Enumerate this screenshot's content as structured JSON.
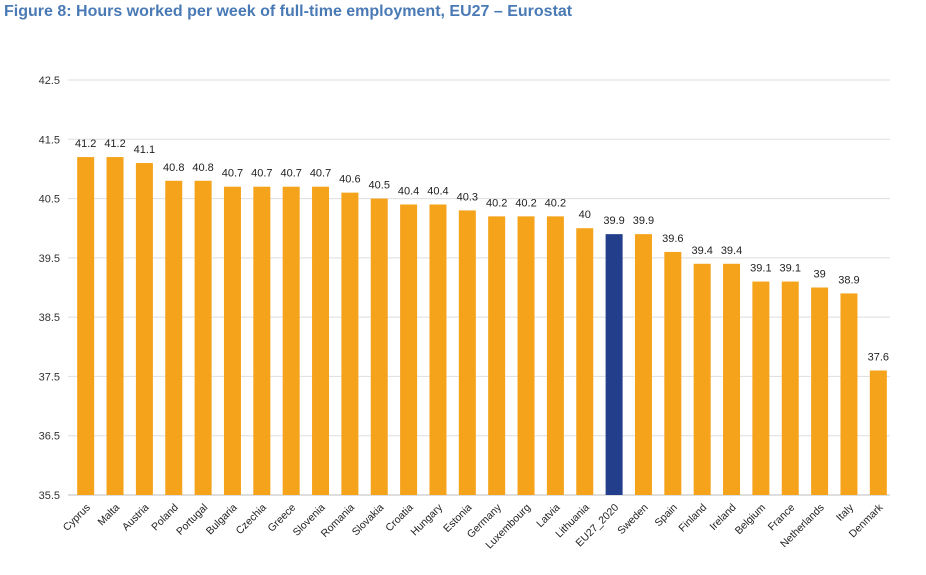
{
  "page": {
    "title": "Figure 8: Hours worked per week of full-time employment, EU27 – Eurostat"
  },
  "chart_data": {
    "type": "bar",
    "title": "",
    "xlabel": "",
    "ylabel": "",
    "ylim": [
      35.5,
      42.5
    ],
    "yticks": [
      "35.5",
      "36.5",
      "37.5",
      "38.5",
      "39.5",
      "40.5",
      "41.5",
      "42.5"
    ],
    "grid": true,
    "colors": {
      "default": "#f5a31a",
      "highlight": "#233e8b"
    },
    "highlight_category": "EU27_2020",
    "categories": [
      "Cyprus",
      "Malta",
      "Austria",
      "Poland",
      "Portugal",
      "Bulgaria",
      "Czechia",
      "Greece",
      "Slovenia",
      "Romania",
      "Slovakia",
      "Croatia",
      "Hungary",
      "Estonia",
      "Germany",
      "Luxembourg",
      "Latvia",
      "Lithuania",
      "EU27_2020",
      "Sweden",
      "Spain",
      "Finland",
      "Ireland",
      "Belgium",
      "France",
      "Netherlands",
      "Italy",
      "Denmark"
    ],
    "values": [
      41.2,
      41.2,
      41.1,
      40.8,
      40.8,
      40.7,
      40.7,
      40.7,
      40.7,
      40.6,
      40.5,
      40.4,
      40.4,
      40.3,
      40.2,
      40.2,
      40.2,
      40,
      39.9,
      39.9,
      39.6,
      39.4,
      39.4,
      39.1,
      39.1,
      39,
      38.9,
      37.6
    ],
    "value_labels": [
      "41.2",
      "41.2",
      "41.1",
      "40.8",
      "40.8",
      "40.7",
      "40.7",
      "40.7",
      "40.7",
      "40.6",
      "40.5",
      "40.4",
      "40.4",
      "40.3",
      "40.2",
      "40.2",
      "40.2",
      "40",
      "39.9",
      "39.9",
      "39.6",
      "39.4",
      "39.4",
      "39.1",
      "39.1",
      "39",
      "38.9",
      "37.6"
    ]
  }
}
